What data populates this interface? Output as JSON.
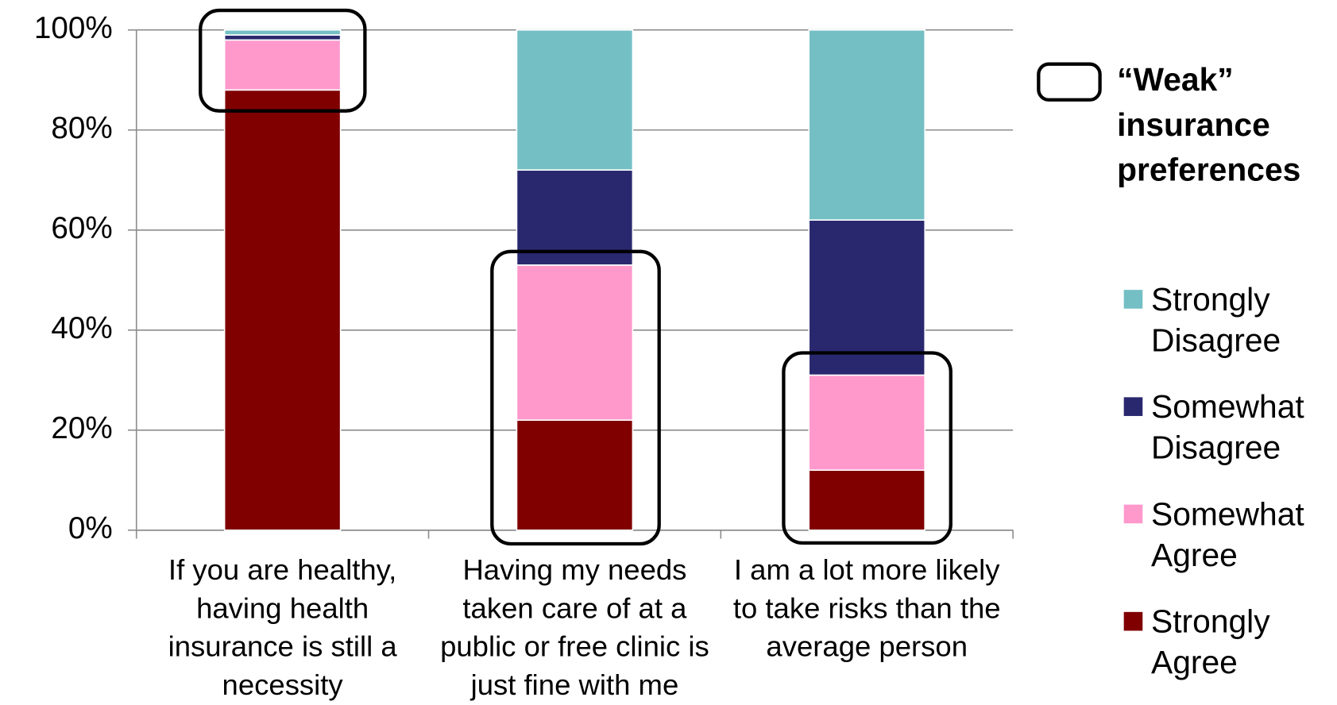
{
  "chart_data": {
    "type": "stacked_bar",
    "categories": [
      "If you are healthy, having health insurance is still a necessity",
      "Having my needs taken care of at a public or free clinic is just fine with me",
      "I am a lot more likely to take risks than the average person"
    ],
    "series": [
      {
        "name": "Strongly Agree",
        "color": "#800000",
        "values": [
          88,
          22,
          12
        ]
      },
      {
        "name": "Somewhat Agree",
        "color": "#ff99cc",
        "values": [
          10,
          31,
          19
        ]
      },
      {
        "name": "Somewhat Disagree",
        "color": "#29286f",
        "values": [
          1,
          19,
          31
        ]
      },
      {
        "name": "Strongly Disagree",
        "color": "#74bfc4",
        "values": [
          1,
          28,
          38
        ]
      }
    ],
    "ylim": [
      0,
      100
    ],
    "yticks": [
      {
        "value": 0,
        "label": "0%"
      },
      {
        "value": 20,
        "label": "20%"
      },
      {
        "value": 40,
        "label": "40%"
      },
      {
        "value": 60,
        "label": "60%"
      },
      {
        "value": 80,
        "label": "80%"
      },
      {
        "value": 100,
        "label": "100%"
      }
    ],
    "grid": true,
    "legend": "right",
    "annotation": "“Weak” insurance preferences"
  }
}
